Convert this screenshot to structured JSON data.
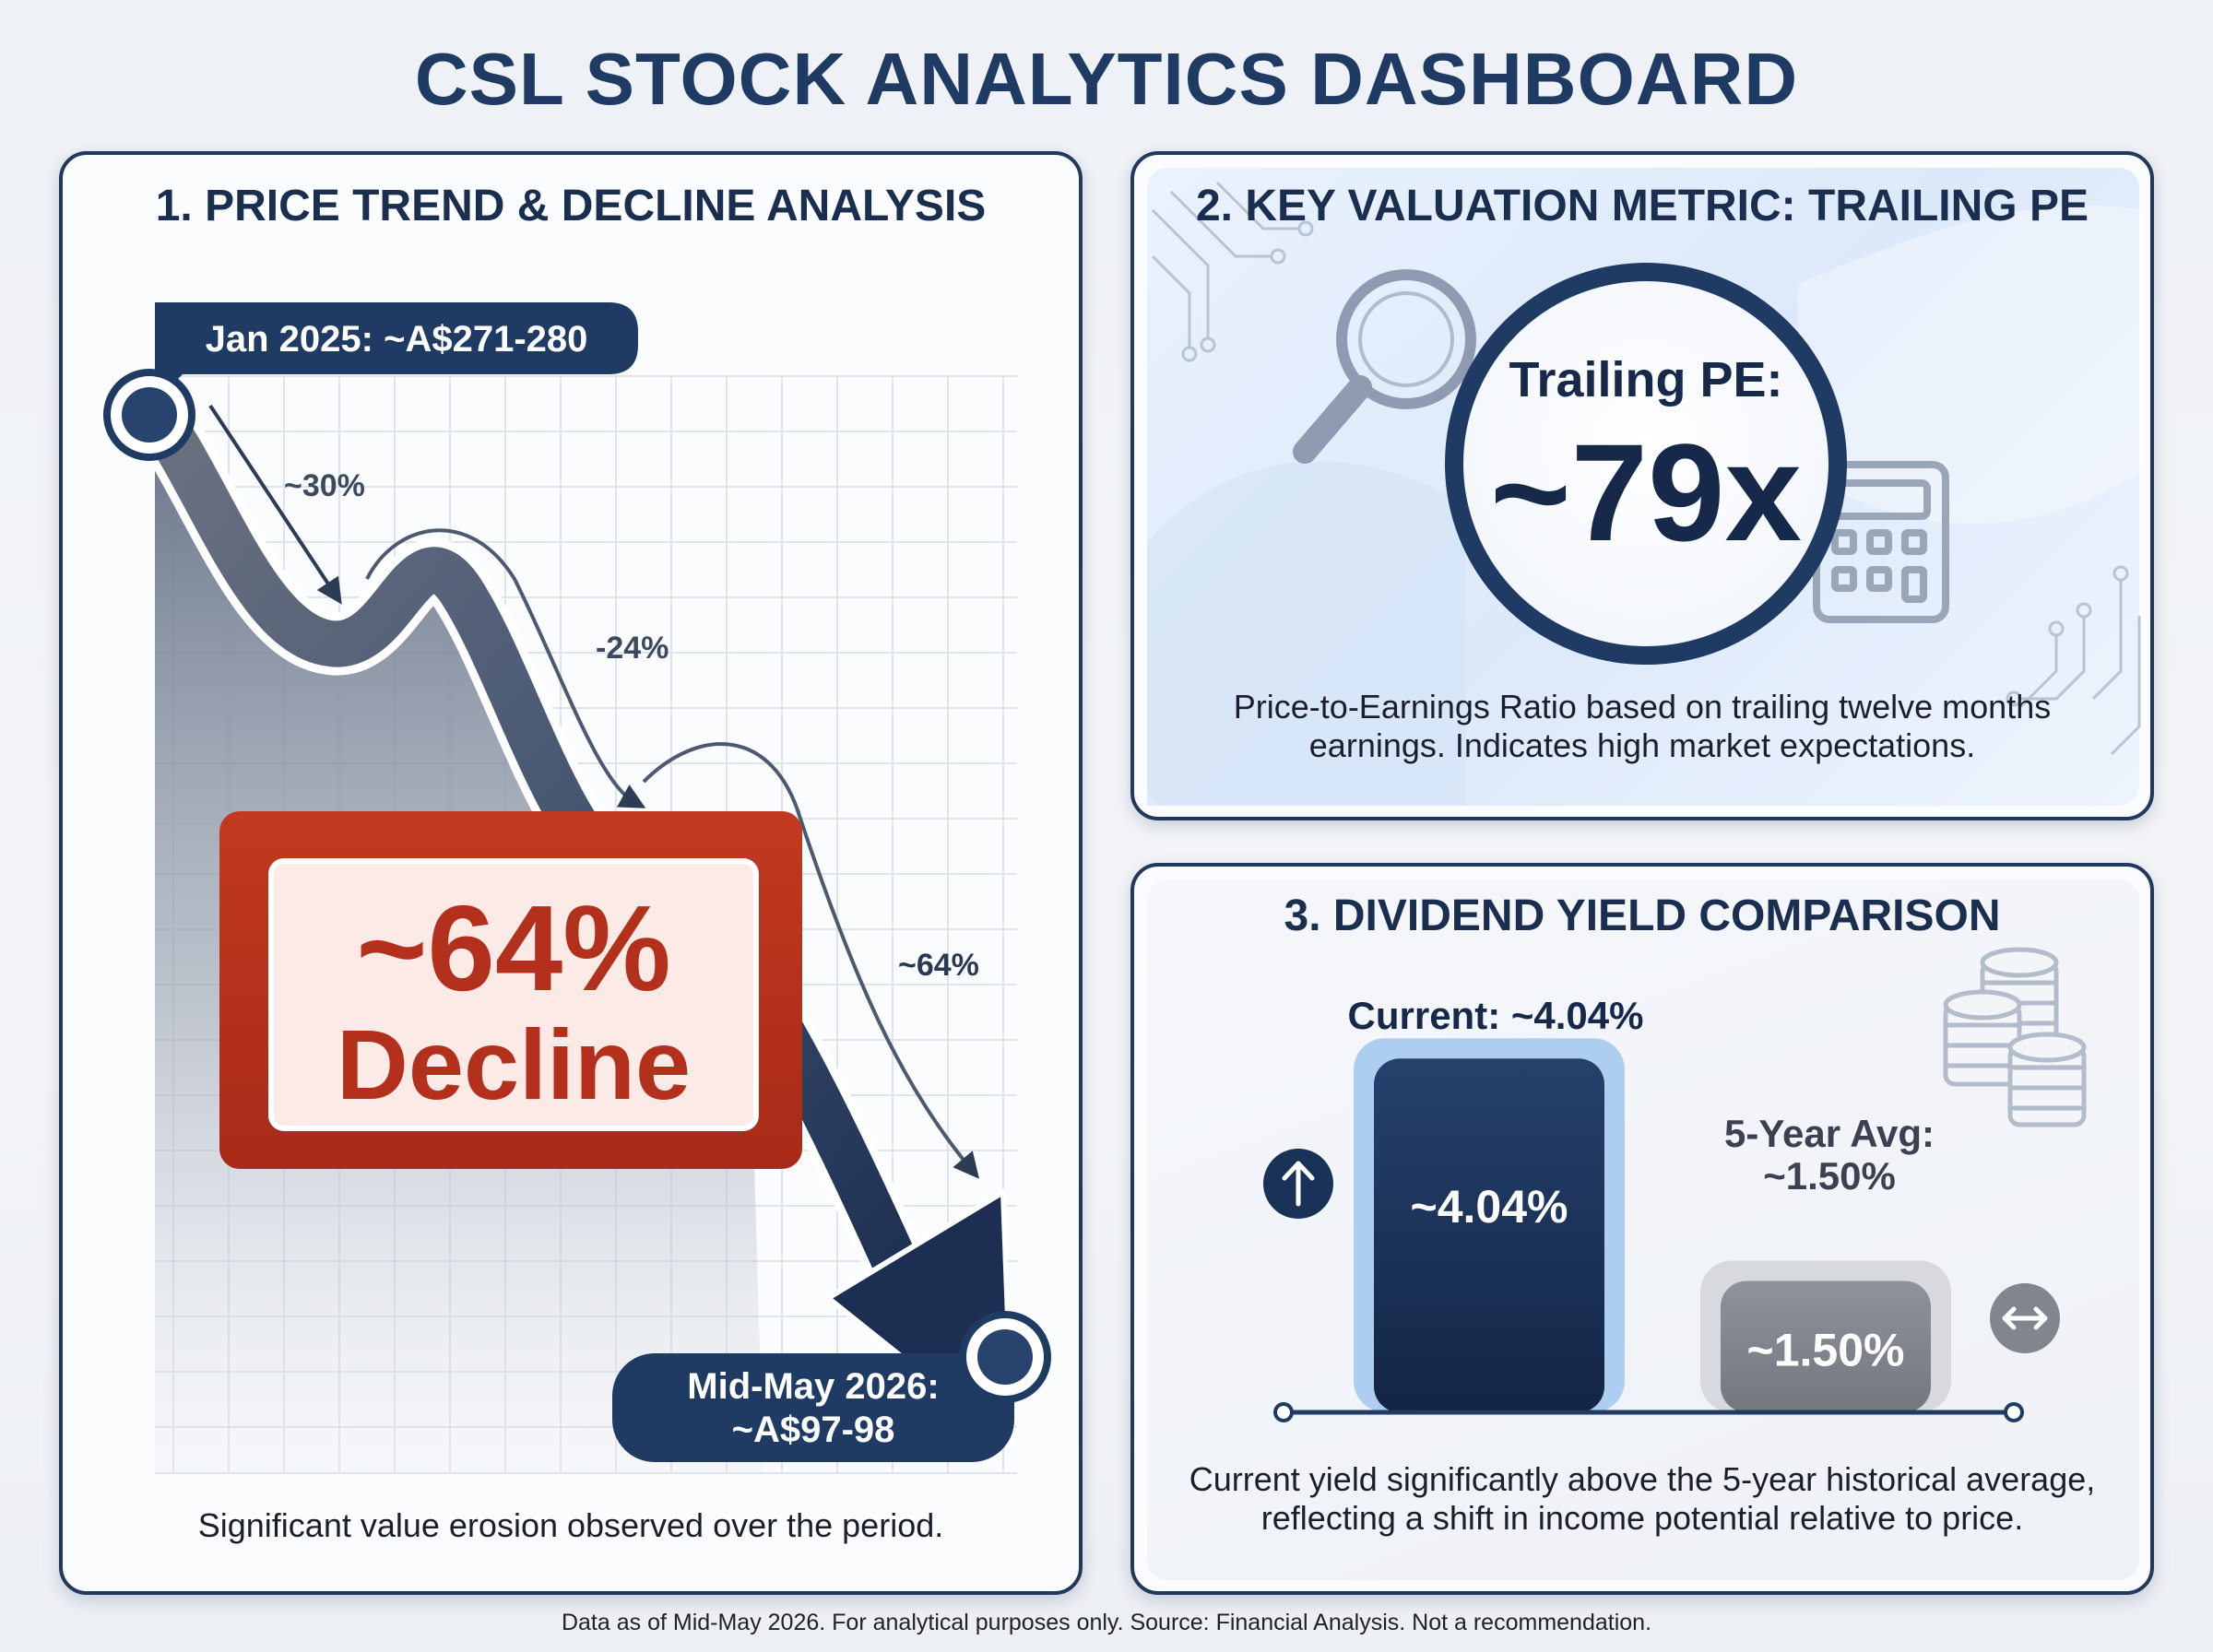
{
  "title": "CSL STOCK ANALYTICS DASHBOARD",
  "panels": {
    "price": {
      "title": "1. PRICE TREND & DECLINE ANALYSIS",
      "start_label": "Jan 2025: ~A$271-280",
      "end_label_line1": "Mid-May 2026:",
      "end_label_line2": "~A$97-98",
      "callout_line1": "~64%",
      "callout_line2": "Decline",
      "caption": "Significant value erosion observed over the period."
    },
    "pe": {
      "title": "2. KEY VALUATION METRIC: TRAILING PE",
      "metric_label": "Trailing PE:",
      "metric_value": "~79x",
      "caption_line1": "Price-to-Earnings Ratio based on trailing twelve months",
      "caption_line2": "earnings. Indicates high market expectations."
    },
    "dividend": {
      "title": "3. DIVIDEND YIELD COMPARISON",
      "current_label": "Current: ~4.04%",
      "avg_label_line1": "5-Year Avg:",
      "avg_label_line2": "~1.50%",
      "caption_line1": "Current yield significantly above the 5-year historical average,",
      "caption_line2": "reflecting a shift in income potential relative to price."
    }
  },
  "footer": "Data as of Mid-May 2026. For analytical purposes only. Source: Financial Analysis. Not a recommendation.",
  "colors": {
    "navy": "#1f3a63",
    "dark_navy": "#17294a",
    "decline_red": "#b8321f",
    "gray_bar": "#8a8e96",
    "light_blue": "#9cc4ee"
  },
  "icons": {
    "pe_panel": [
      "magnifier-icon",
      "calculator-icon",
      "circuit-icon"
    ],
    "dividend_panel": [
      "coins-icon",
      "arrow-up-icon",
      "arrows-horizontal-icon"
    ]
  },
  "chart_data": [
    {
      "type": "line",
      "x": [
        "Jan 2025",
        "Mid-May 2026"
      ],
      "price_range_start": [
        271,
        280
      ],
      "price_range_end": [
        97,
        98
      ],
      "segment_labels": [
        "~30%",
        "-24%",
        "~64%"
      ],
      "total_decline_label": "~64%"
    },
    {
      "type": "bar",
      "categories": [
        "Current",
        "5-Year Avg"
      ],
      "values": [
        4.04,
        1.5
      ],
      "value_labels": [
        "~4.04%",
        "~1.50%"
      ],
      "unit": "%"
    }
  ]
}
